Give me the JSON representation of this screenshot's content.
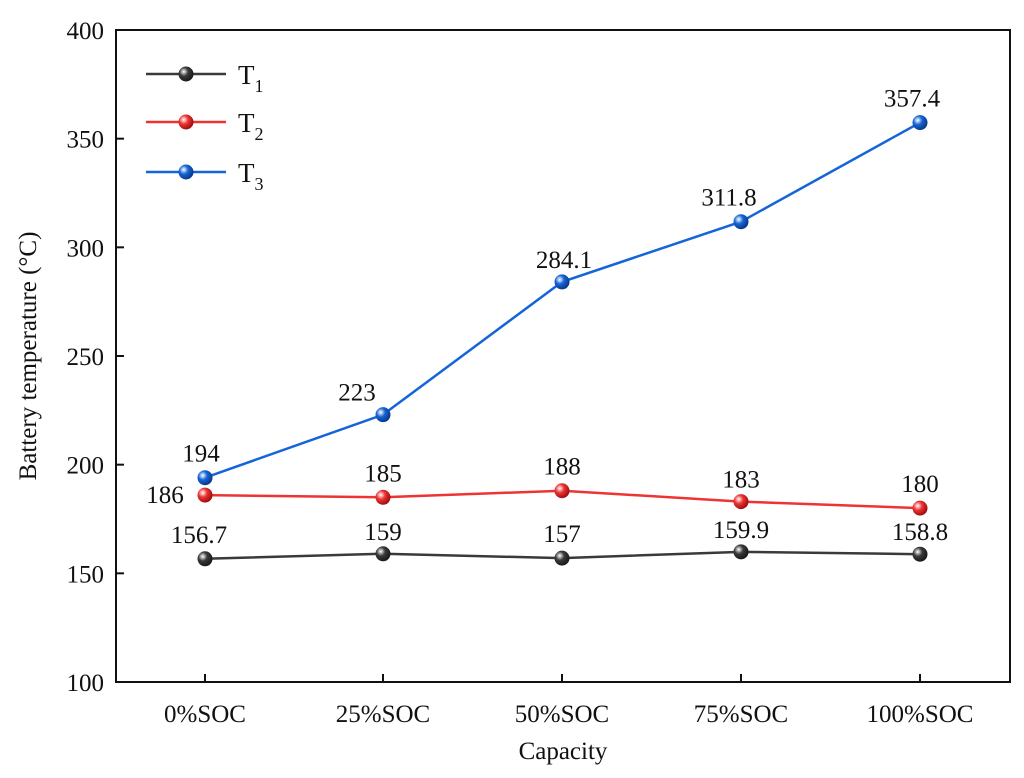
{
  "chart_data": {
    "type": "line",
    "xlabel": "Capacity",
    "ylabel": "Battery temperature (°C)",
    "categories": [
      "0%SOC",
      "25%SOC",
      "50%SOC",
      "75%SOC",
      "100%SOC"
    ],
    "ylim": [
      100,
      400
    ],
    "yticks": [
      100,
      150,
      200,
      250,
      300,
      350,
      400
    ],
    "grid": false,
    "legend_position": "top-left",
    "series": [
      {
        "name": "T1",
        "legend_main": "T",
        "legend_sub": "1",
        "color": "#3a3a3a",
        "values": [
          156.7,
          159,
          157,
          159.9,
          158.8
        ],
        "labels": [
          "156.7",
          "159",
          "157",
          "159.9",
          "158.8"
        ]
      },
      {
        "name": "T2",
        "legend_main": "T",
        "legend_sub": "2",
        "color": "#ee3333",
        "values": [
          186,
          185,
          188,
          183,
          180
        ],
        "labels": [
          "186",
          "185",
          "188",
          "183",
          "180"
        ]
      },
      {
        "name": "T3",
        "legend_main": "T",
        "legend_sub": "3",
        "color": "#1565d8",
        "values": [
          194,
          223,
          284.1,
          311.8,
          357.4
        ],
        "labels": [
          "194",
          "223",
          "284.1",
          "311.8",
          "357.4"
        ]
      }
    ]
  }
}
